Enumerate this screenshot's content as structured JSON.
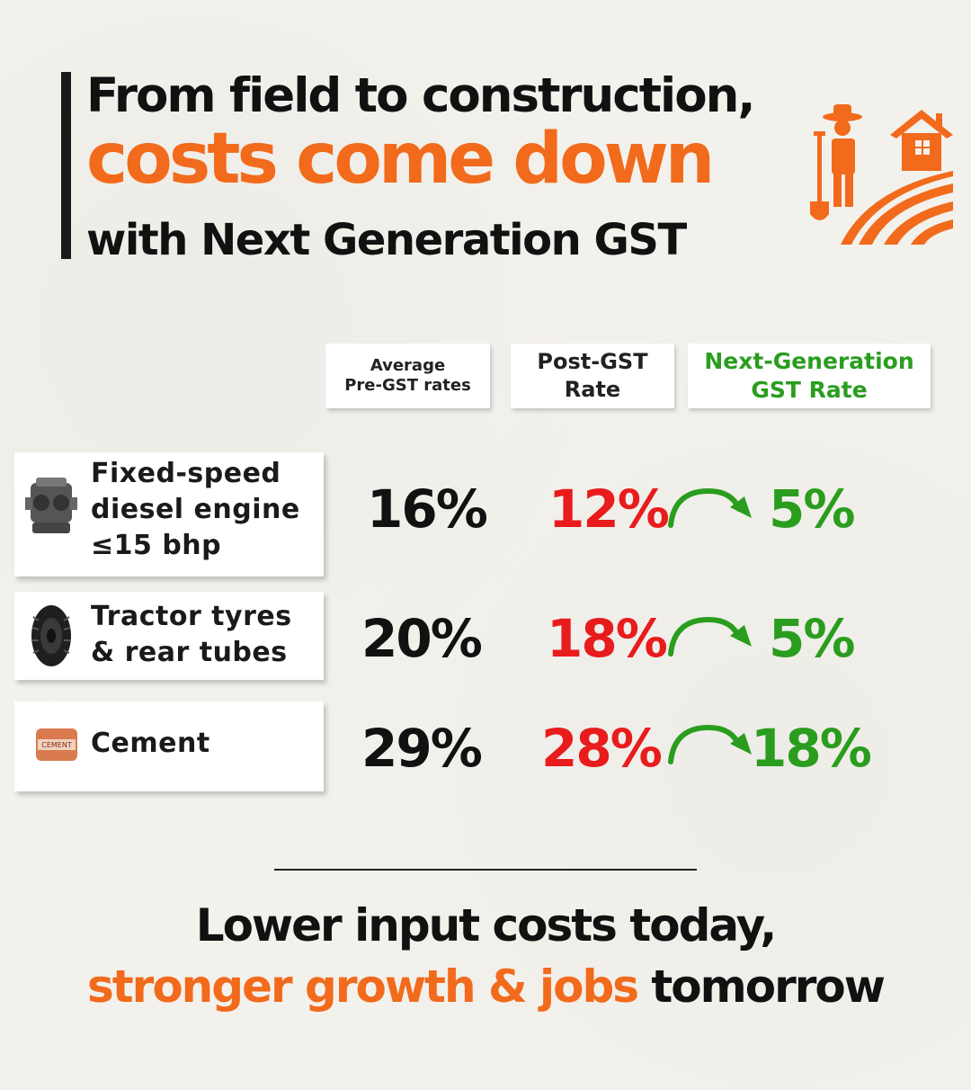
{
  "title": {
    "line1": "From field to construction,",
    "line2": "costs come down",
    "line3": "with  Next Generation GST"
  },
  "headers": {
    "pre_line1": "Average",
    "pre_line2": "Pre-GST rates",
    "post_line1": "Post-GST",
    "post_line2": "Rate",
    "next_line1": "Next-Generation",
    "next_line2": "GST Rate"
  },
  "items": [
    {
      "name": "Fixed-speed\ndiesel engine\n≤15 bhp",
      "icon": "engine-icon",
      "pre_gst": "16%",
      "post_gst": "12%",
      "next_gen": "5%"
    },
    {
      "name": "Tractor tyres\n& rear tubes",
      "icon": "tyre-icon",
      "pre_gst": "20%",
      "post_gst": "18%",
      "next_gen": "5%"
    },
    {
      "name": "Cement",
      "icon": "cement-bag-icon",
      "icon_text": "CEMENT",
      "pre_gst": "29%",
      "post_gst": "28%",
      "next_gen": "18%"
    }
  ],
  "footer": {
    "line1": "Lower input costs today,",
    "line2_highlight": "stronger growth & jobs",
    "line2_rest": " tomorrow"
  },
  "colors": {
    "accent_orange": "#f26a1b",
    "post_red": "#e81c1c",
    "next_green": "#2a9d1f",
    "background": "#f3f1ec"
  }
}
